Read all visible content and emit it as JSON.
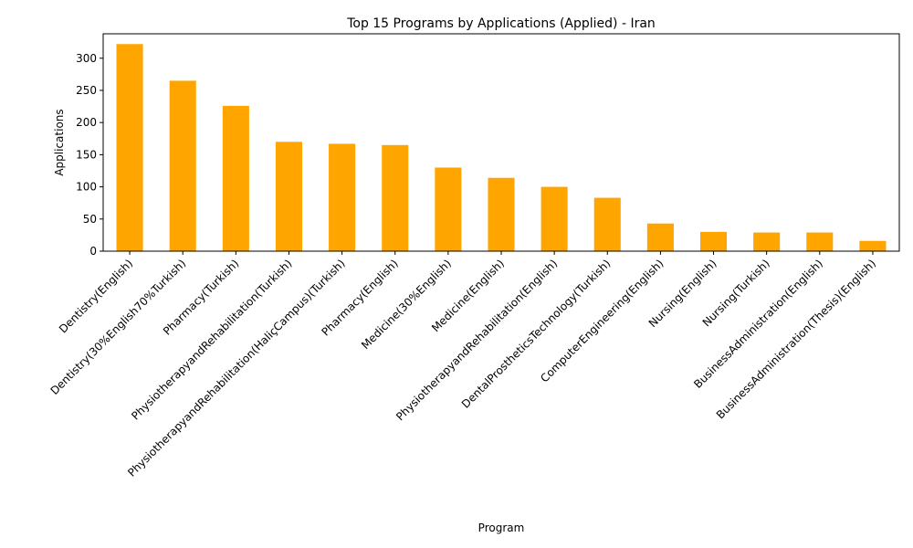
{
  "chart_data": {
    "type": "bar",
    "title": "Top 15 Programs by Applications (Applied) - Iran",
    "xlabel": "Program",
    "ylabel": "Applications",
    "ylim": [
      0,
      338
    ],
    "yticks": [
      0,
      50,
      100,
      150,
      200,
      250,
      300
    ],
    "grid": false,
    "bar_color": "#FFA500",
    "categories": [
      "Dentistry(English)",
      "Dentistry(30%English70%Turkish)",
      "Pharmacy(Turkish)",
      "PhysiotherapyandRehabilitation(Turkish)",
      "PhysiotherapyandRehabilitation(HaliçCampus)(Turkish)",
      "Pharmacy(English)",
      "Medicine(30%English)",
      "Medicine(English)",
      "PhysiotherapyandRehabilitation(English)",
      "DentalProstheticsTechnology(Turkish)",
      "ComputerEngineering(English)",
      "Nursing(English)",
      "Nursing(Turkish)",
      "BusinessAdministration(English)",
      "BusinessAdministration(Thesis)(English)"
    ],
    "values": [
      322,
      265,
      226,
      170,
      167,
      165,
      130,
      114,
      100,
      83,
      43,
      30,
      29,
      29,
      16
    ]
  }
}
